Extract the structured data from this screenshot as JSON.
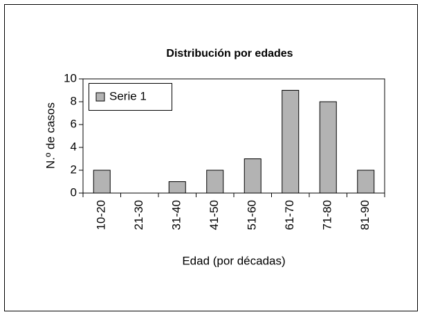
{
  "chart_data": {
    "type": "bar",
    "title": "Distribución por edades",
    "x_label": "Edad (por décadas)",
    "y_label": "N.º de casos",
    "categories": [
      "10-20",
      "21-30",
      "31-40",
      "41-50",
      "51-60",
      "61-70",
      "71-80",
      "81-90"
    ],
    "series": [
      {
        "name": "Serie 1",
        "color": "#b3b3b3",
        "values": [
          2,
          0,
          1,
          2,
          3,
          9,
          8,
          2
        ]
      }
    ],
    "ylim": [
      0,
      10
    ],
    "yticks": [
      0,
      2,
      4,
      6,
      8,
      10
    ],
    "grid": false,
    "legend": "top-left"
  }
}
